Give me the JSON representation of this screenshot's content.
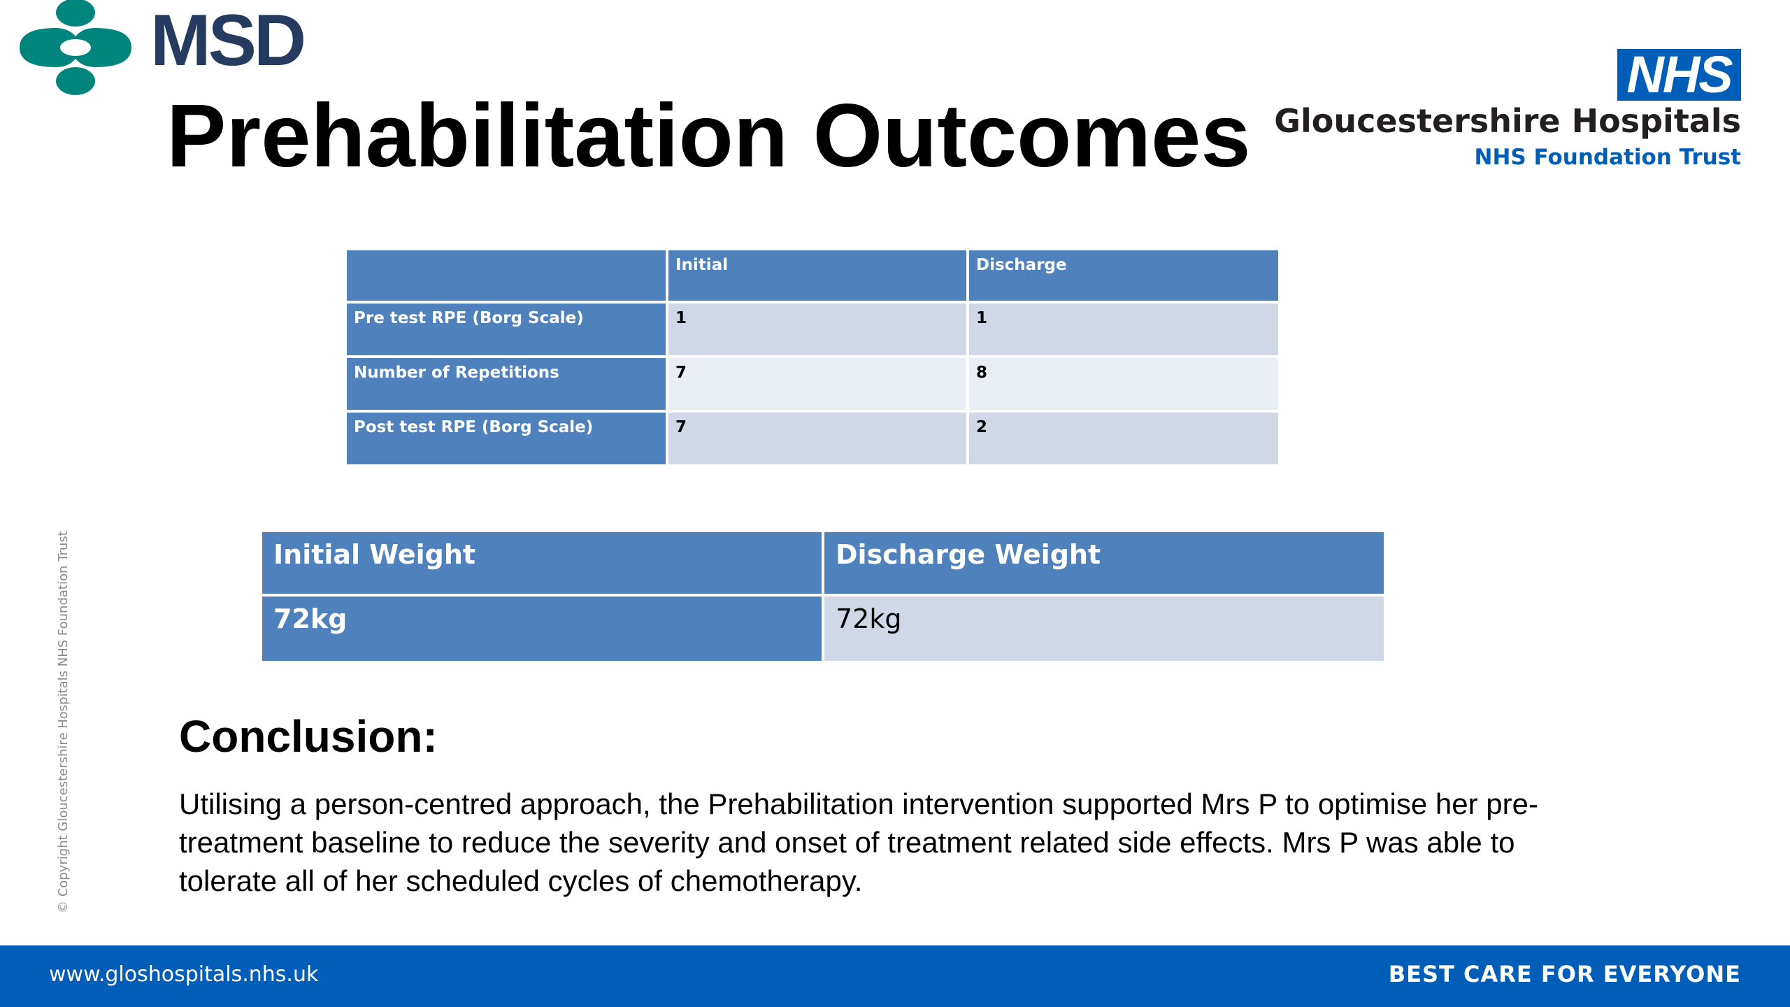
{
  "header": {
    "brand": "MSD",
    "title": "Prehabilitation Outcomes"
  },
  "nhs": {
    "badge": "NHS",
    "organisation": "Gloucestershire Hospitals",
    "trust": "NHS Foundation Trust"
  },
  "copyright": "© Copyright Gloucestershire Hospitals NHS Foundation Trust",
  "rpe_table": {
    "columns": [
      "",
      "Initial",
      "Discharge"
    ],
    "rows": [
      {
        "label": "Pre test RPE (Borg Scale)",
        "initial": "1",
        "discharge": "1"
      },
      {
        "label": "Number of Repetitions",
        "initial": "7",
        "discharge": "8"
      },
      {
        "label": "Post test RPE (Borg Scale)",
        "initial": "7",
        "discharge": "2"
      }
    ]
  },
  "weight_table": {
    "columns": [
      "Initial Weight",
      "Discharge Weight"
    ],
    "values": [
      "72kg",
      "72kg"
    ]
  },
  "conclusion": {
    "heading": "Conclusion:",
    "body": "Utilising a person-centred approach, the Prehabilitation intervention supported Mrs P to optimise her pre-treatment baseline to reduce the severity and onset of treatment related side effects. Mrs P was able to tolerate all of her scheduled cycles of chemotherapy."
  },
  "footer": {
    "url": "www.gloshospitals.nhs.uk",
    "slogan": "BEST CARE FOR EVERYONE"
  },
  "colors": {
    "table_header": "#4f81bd",
    "table_cell_a": "#d0d8e8",
    "table_cell_b": "#e9edf4",
    "nhs_blue": "#005eb8",
    "msd_teal": "#00857c",
    "msd_navy": "#253b5f"
  }
}
